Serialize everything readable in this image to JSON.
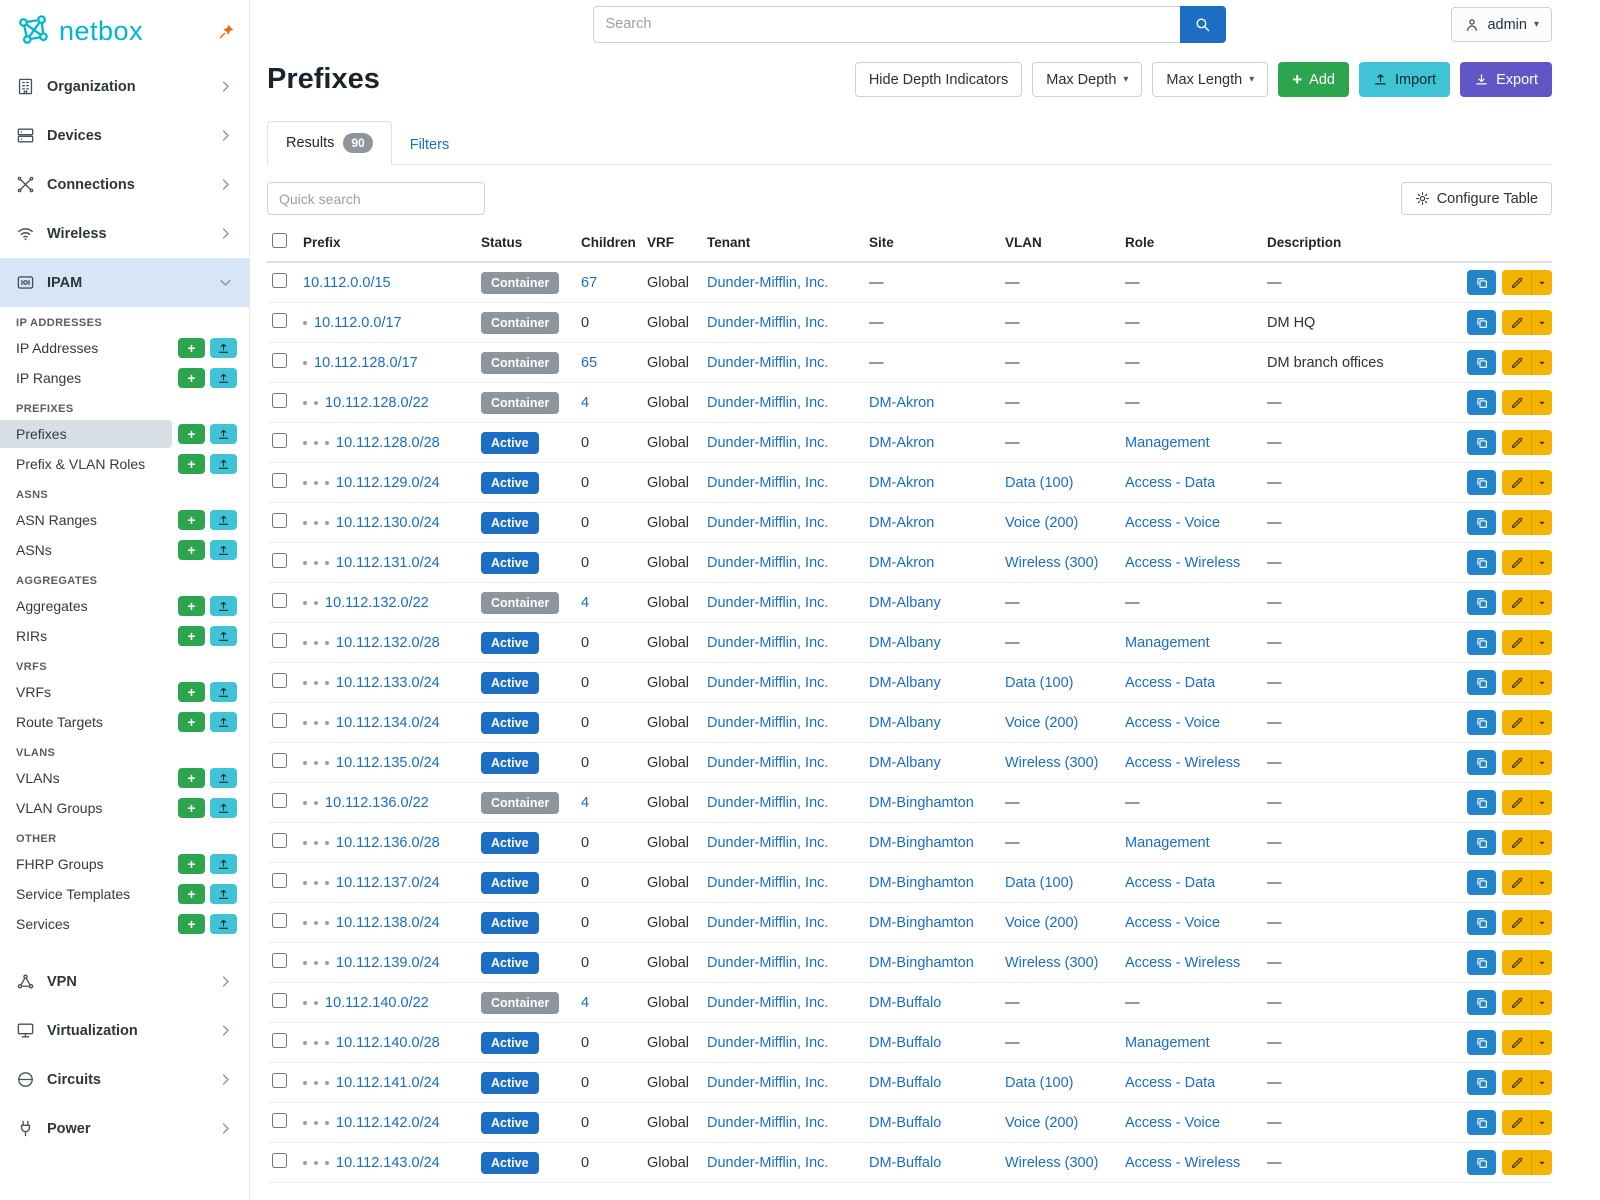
{
  "brand": {
    "name": "netbox"
  },
  "topbar": {
    "search_placeholder": "Search",
    "user_label": "admin"
  },
  "sidebar": {
    "top_items": [
      {
        "label": "Organization"
      },
      {
        "label": "Devices"
      },
      {
        "label": "Connections"
      },
      {
        "label": "Wireless"
      },
      {
        "label": "IPAM"
      }
    ],
    "sections": [
      {
        "header": "IP ADDRESSES",
        "items": [
          "IP Addresses",
          "IP Ranges"
        ]
      },
      {
        "header": "PREFIXES",
        "items": [
          "Prefixes",
          "Prefix & VLAN Roles"
        ]
      },
      {
        "header": "ASNS",
        "items": [
          "ASN Ranges",
          "ASNs"
        ]
      },
      {
        "header": "AGGREGATES",
        "items": [
          "Aggregates",
          "RIRs"
        ]
      },
      {
        "header": "VRFS",
        "items": [
          "VRFs",
          "Route Targets"
        ]
      },
      {
        "header": "VLANS",
        "items": [
          "VLANs",
          "VLAN Groups"
        ]
      },
      {
        "header": "OTHER",
        "items": [
          "FHRP Groups",
          "Service Templates",
          "Services"
        ]
      }
    ],
    "bottom_items": [
      {
        "label": "VPN"
      },
      {
        "label": "Virtualization"
      },
      {
        "label": "Circuits"
      },
      {
        "label": "Power"
      }
    ]
  },
  "page": {
    "title": "Prefixes",
    "toolbar": {
      "hide_depth_label": "Hide Depth Indicators",
      "max_depth_label": "Max Depth",
      "max_length_label": "Max Length",
      "add_label": "Add",
      "import_label": "Import",
      "export_label": "Export"
    },
    "tabs": {
      "results_label": "Results",
      "results_count": "90",
      "filters_label": "Filters"
    },
    "quick_search_placeholder": "Quick search",
    "configure_table_label": "Configure Table"
  },
  "table": {
    "columns": [
      "Prefix",
      "Status",
      "Children",
      "VRF",
      "Tenant",
      "Site",
      "VLAN",
      "Role",
      "Description"
    ],
    "empty_value": "—",
    "rows": [
      {
        "depth": 0,
        "prefix": "10.112.0.0/15",
        "status": "Container",
        "children": "67",
        "children_link": true,
        "vrf": "Global",
        "tenant": "Dunder-Mifflin, Inc.",
        "site": "—",
        "vlan": "—",
        "role": "—",
        "description": "—"
      },
      {
        "depth": 1,
        "prefix": "10.112.0.0/17",
        "status": "Container",
        "children": "0",
        "children_link": false,
        "vrf": "Global",
        "tenant": "Dunder-Mifflin, Inc.",
        "site": "—",
        "vlan": "—",
        "role": "—",
        "description": "DM HQ"
      },
      {
        "depth": 1,
        "prefix": "10.112.128.0/17",
        "status": "Container",
        "children": "65",
        "children_link": true,
        "vrf": "Global",
        "tenant": "Dunder-Mifflin, Inc.",
        "site": "—",
        "vlan": "—",
        "role": "—",
        "description": "DM branch offices"
      },
      {
        "depth": 2,
        "prefix": "10.112.128.0/22",
        "status": "Container",
        "children": "4",
        "children_link": true,
        "vrf": "Global",
        "tenant": "Dunder-Mifflin, Inc.",
        "site": "DM-Akron",
        "vlan": "—",
        "role": "—",
        "description": "—"
      },
      {
        "depth": 3,
        "prefix": "10.112.128.0/28",
        "status": "Active",
        "children": "0",
        "children_link": false,
        "vrf": "Global",
        "tenant": "Dunder-Mifflin, Inc.",
        "site": "DM-Akron",
        "vlan": "—",
        "role": "Management",
        "description": "—"
      },
      {
        "depth": 3,
        "prefix": "10.112.129.0/24",
        "status": "Active",
        "children": "0",
        "children_link": false,
        "vrf": "Global",
        "tenant": "Dunder-Mifflin, Inc.",
        "site": "DM-Akron",
        "vlan": "Data (100)",
        "role": "Access - Data",
        "description": "—"
      },
      {
        "depth": 3,
        "prefix": "10.112.130.0/24",
        "status": "Active",
        "children": "0",
        "children_link": false,
        "vrf": "Global",
        "tenant": "Dunder-Mifflin, Inc.",
        "site": "DM-Akron",
        "vlan": "Voice (200)",
        "role": "Access - Voice",
        "description": "—"
      },
      {
        "depth": 3,
        "prefix": "10.112.131.0/24",
        "status": "Active",
        "children": "0",
        "children_link": false,
        "vrf": "Global",
        "tenant": "Dunder-Mifflin, Inc.",
        "site": "DM-Akron",
        "vlan": "Wireless (300)",
        "role": "Access - Wireless",
        "description": "—"
      },
      {
        "depth": 2,
        "prefix": "10.112.132.0/22",
        "status": "Container",
        "children": "4",
        "children_link": true,
        "vrf": "Global",
        "tenant": "Dunder-Mifflin, Inc.",
        "site": "DM-Albany",
        "vlan": "—",
        "role": "—",
        "description": "—"
      },
      {
        "depth": 3,
        "prefix": "10.112.132.0/28",
        "status": "Active",
        "children": "0",
        "children_link": false,
        "vrf": "Global",
        "tenant": "Dunder-Mifflin, Inc.",
        "site": "DM-Albany",
        "vlan": "—",
        "role": "Management",
        "description": "—"
      },
      {
        "depth": 3,
        "prefix": "10.112.133.0/24",
        "status": "Active",
        "children": "0",
        "children_link": false,
        "vrf": "Global",
        "tenant": "Dunder-Mifflin, Inc.",
        "site": "DM-Albany",
        "vlan": "Data (100)",
        "role": "Access - Data",
        "description": "—"
      },
      {
        "depth": 3,
        "prefix": "10.112.134.0/24",
        "status": "Active",
        "children": "0",
        "children_link": false,
        "vrf": "Global",
        "tenant": "Dunder-Mifflin, Inc.",
        "site": "DM-Albany",
        "vlan": "Voice (200)",
        "role": "Access - Voice",
        "description": "—"
      },
      {
        "depth": 3,
        "prefix": "10.112.135.0/24",
        "status": "Active",
        "children": "0",
        "children_link": false,
        "vrf": "Global",
        "tenant": "Dunder-Mifflin, Inc.",
        "site": "DM-Albany",
        "vlan": "Wireless (300)",
        "role": "Access - Wireless",
        "description": "—"
      },
      {
        "depth": 2,
        "prefix": "10.112.136.0/22",
        "status": "Container",
        "children": "4",
        "children_link": true,
        "vrf": "Global",
        "tenant": "Dunder-Mifflin, Inc.",
        "site": "DM-Binghamton",
        "vlan": "—",
        "role": "—",
        "description": "—"
      },
      {
        "depth": 3,
        "prefix": "10.112.136.0/28",
        "status": "Active",
        "children": "0",
        "children_link": false,
        "vrf": "Global",
        "tenant": "Dunder-Mifflin, Inc.",
        "site": "DM-Binghamton",
        "vlan": "—",
        "role": "Management",
        "description": "—"
      },
      {
        "depth": 3,
        "prefix": "10.112.137.0/24",
        "status": "Active",
        "children": "0",
        "children_link": false,
        "vrf": "Global",
        "tenant": "Dunder-Mifflin, Inc.",
        "site": "DM-Binghamton",
        "vlan": "Data (100)",
        "role": "Access - Data",
        "description": "—"
      },
      {
        "depth": 3,
        "prefix": "10.112.138.0/24",
        "status": "Active",
        "children": "0",
        "children_link": false,
        "vrf": "Global",
        "tenant": "Dunder-Mifflin, Inc.",
        "site": "DM-Binghamton",
        "vlan": "Voice (200)",
        "role": "Access - Voice",
        "description": "—"
      },
      {
        "depth": 3,
        "prefix": "10.112.139.0/24",
        "status": "Active",
        "children": "0",
        "children_link": false,
        "vrf": "Global",
        "tenant": "Dunder-Mifflin, Inc.",
        "site": "DM-Binghamton",
        "vlan": "Wireless (300)",
        "role": "Access - Wireless",
        "description": "—"
      },
      {
        "depth": 2,
        "prefix": "10.112.140.0/22",
        "status": "Container",
        "children": "4",
        "children_link": true,
        "vrf": "Global",
        "tenant": "Dunder-Mifflin, Inc.",
        "site": "DM-Buffalo",
        "vlan": "—",
        "role": "—",
        "description": "—"
      },
      {
        "depth": 3,
        "prefix": "10.112.140.0/28",
        "status": "Active",
        "children": "0",
        "children_link": false,
        "vrf": "Global",
        "tenant": "Dunder-Mifflin, Inc.",
        "site": "DM-Buffalo",
        "vlan": "—",
        "role": "Management",
        "description": "—"
      },
      {
        "depth": 3,
        "prefix": "10.112.141.0/24",
        "status": "Active",
        "children": "0",
        "children_link": false,
        "vrf": "Global",
        "tenant": "Dunder-Mifflin, Inc.",
        "site": "DM-Buffalo",
        "vlan": "Data (100)",
        "role": "Access - Data",
        "description": "—"
      },
      {
        "depth": 3,
        "prefix": "10.112.142.0/24",
        "status": "Active",
        "children": "0",
        "children_link": false,
        "vrf": "Global",
        "tenant": "Dunder-Mifflin, Inc.",
        "site": "DM-Buffalo",
        "vlan": "Voice (200)",
        "role": "Access - Voice",
        "description": "—"
      },
      {
        "depth": 3,
        "prefix": "10.112.143.0/24",
        "status": "Active",
        "children": "0",
        "children_link": false,
        "vrf": "Global",
        "tenant": "Dunder-Mifflin, Inc.",
        "site": "DM-Buffalo",
        "vlan": "Wireless (300)",
        "role": "Access - Wireless",
        "description": "—"
      }
    ]
  }
}
